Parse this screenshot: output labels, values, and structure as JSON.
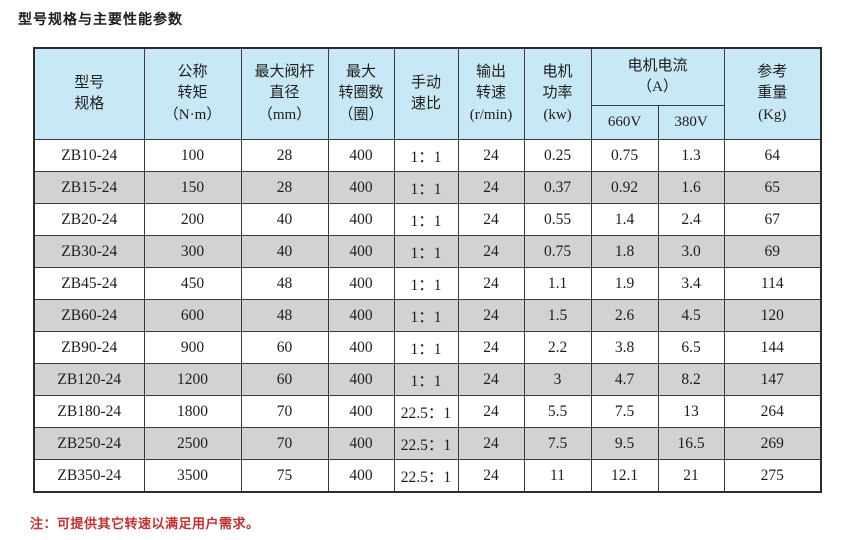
{
  "page": {
    "title": "型号规格与主要性能参数",
    "note": "注：可提供其它转速以满足用户需求。"
  },
  "colors": {
    "header_bg": "#c9e8f5",
    "stripe_bg": "#d2d2d2",
    "note_color": "#bb3333",
    "border": "#3a3a3a",
    "border_dark": "#2b2b2b"
  },
  "table": {
    "headers": {
      "model": "型号\n规格",
      "torque": "公称\n转矩\n（N·m）",
      "stem_diameter": "最大阀杆\n直径\n（mm）",
      "max_turns": "最大\n转圈数\n（圈）",
      "manual_ratio": "手动\n速比",
      "output_speed": "输出\n转速\n(r/min)",
      "motor_power": "电机\n功率\n(kw)",
      "motor_current": "电机电流\n（A）",
      "v660": "660V",
      "v380": "380V",
      "weight": "参考\n重量\n(Kg)"
    },
    "column_keys": [
      "model",
      "torque_nm",
      "stem_mm",
      "turns",
      "manual_ratio",
      "speed_rpm",
      "power_kw",
      "current_660v",
      "current_380v",
      "weight_kg"
    ],
    "rows": [
      [
        "ZB10-24",
        "100",
        "28",
        "400",
        "1：1",
        "24",
        "0.25",
        "0.75",
        "1.3",
        "64"
      ],
      [
        "ZB15-24",
        "150",
        "28",
        "400",
        "1：1",
        "24",
        "0.37",
        "0.92",
        "1.6",
        "65"
      ],
      [
        "ZB20-24",
        "200",
        "40",
        "400",
        "1：1",
        "24",
        "0.55",
        "1.4",
        "2.4",
        "67"
      ],
      [
        "ZB30-24",
        "300",
        "40",
        "400",
        "1：1",
        "24",
        "0.75",
        "1.8",
        "3.0",
        "69"
      ],
      [
        "ZB45-24",
        "450",
        "48",
        "400",
        "1：1",
        "24",
        "1.1",
        "1.9",
        "3.4",
        "114"
      ],
      [
        "ZB60-24",
        "600",
        "48",
        "400",
        "1：1",
        "24",
        "1.5",
        "2.6",
        "4.5",
        "120"
      ],
      [
        "ZB90-24",
        "900",
        "60",
        "400",
        "1：1",
        "24",
        "2.2",
        "3.8",
        "6.5",
        "144"
      ],
      [
        "ZB120-24",
        "1200",
        "60",
        "400",
        "1：1",
        "24",
        "3",
        "4.7",
        "8.2",
        "147"
      ],
      [
        "ZB180-24",
        "1800",
        "70",
        "400",
        "22.5：1",
        "24",
        "5.5",
        "7.5",
        "13",
        "264"
      ],
      [
        "ZB250-24",
        "2500",
        "70",
        "400",
        "22.5：1",
        "24",
        "7.5",
        "9.5",
        "16.5",
        "269"
      ],
      [
        "ZB350-24",
        "3500",
        "75",
        "400",
        "22.5：1",
        "24",
        "11",
        "12.1",
        "21",
        "275"
      ]
    ]
  }
}
